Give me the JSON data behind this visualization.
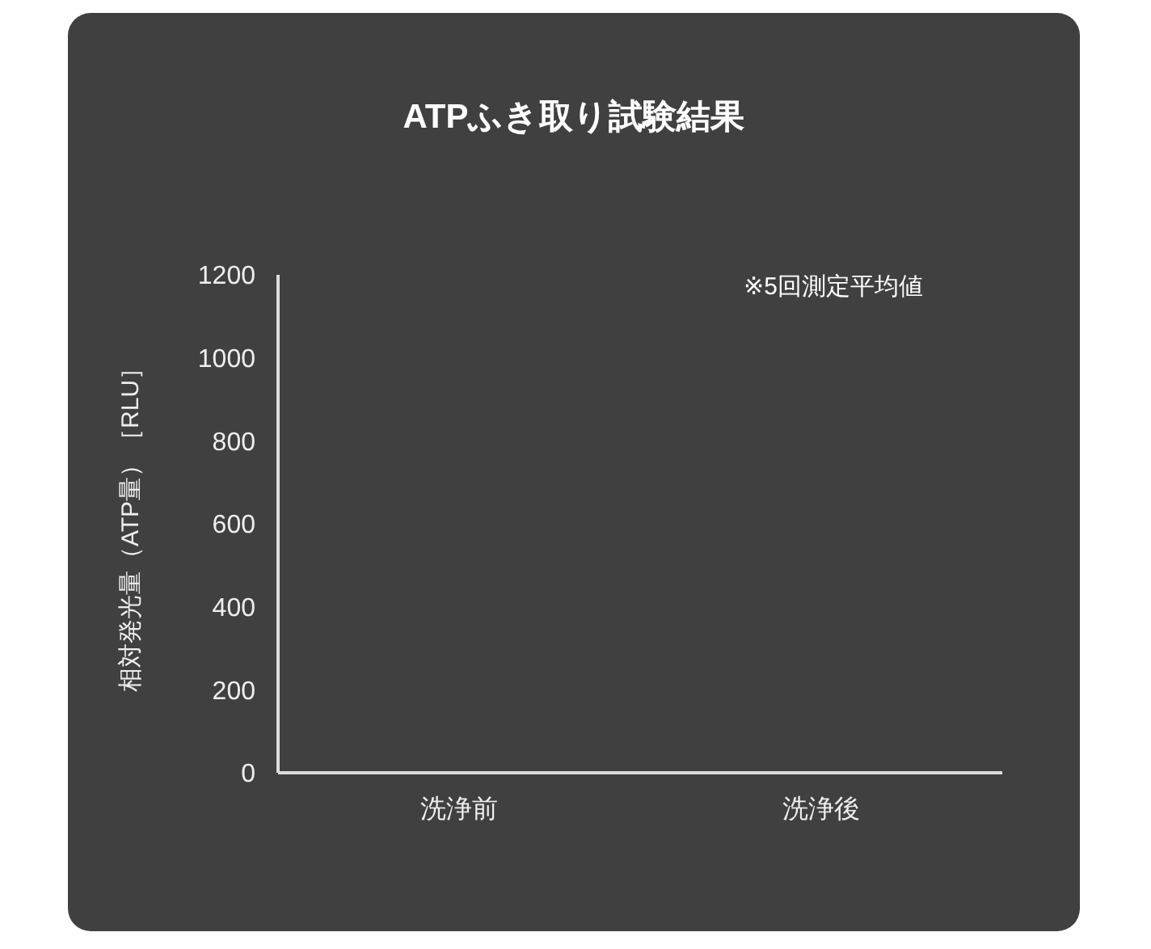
{
  "chart_data": {
    "type": "bar",
    "title": "ATPふき取り試験結果",
    "ylabel": "相対発光量（ATP量）［RLU］",
    "categories": [
      "洗浄前",
      "洗浄後"
    ],
    "values": [
      null,
      null
    ],
    "ylim": [
      0,
      1200
    ],
    "yticks": [
      0,
      200,
      400,
      600,
      800,
      1000,
      1200
    ],
    "annotations": [
      "※5回測定平均値"
    ],
    "grid": false,
    "legend": false
  }
}
